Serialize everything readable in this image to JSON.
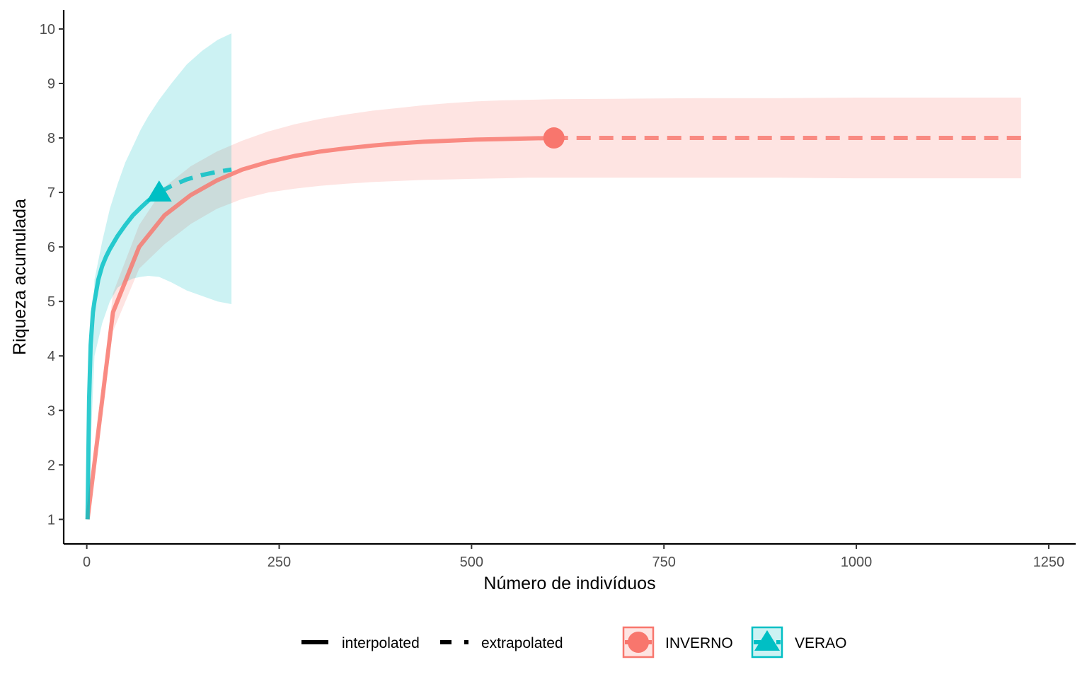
{
  "chart_data": {
    "type": "line",
    "xlabel": "Número de indivíduos",
    "ylabel": "Riqueza acumulada",
    "xlim": [
      -30,
      1285
    ],
    "ylim": [
      0.55,
      10.35
    ],
    "x_ticks": [
      0,
      250,
      500,
      750,
      1000,
      1250
    ],
    "x_tick_labels": [
      "0",
      "250",
      "500",
      "750",
      "1000",
      "1250"
    ],
    "y_ticks": [
      1,
      2,
      3,
      4,
      5,
      6,
      7,
      8,
      9,
      10
    ],
    "y_tick_labels": [
      "1",
      "2",
      "3",
      "4",
      "5",
      "6",
      "7",
      "8",
      "9",
      "10"
    ],
    "grid": false,
    "legend_position": "bottom",
    "linetype_legend": [
      {
        "label": "interpolated",
        "style": "solid"
      },
      {
        "label": "extrapolated",
        "style": "dashed"
      }
    ],
    "series": [
      {
        "name": "INVERNO",
        "color": "#F8766D",
        "marker": "circle",
        "observed": {
          "x": 607,
          "y": 8.0
        },
        "interpolated": {
          "x": [
            1,
            34,
            68,
            101,
            135,
            169,
            202,
            236,
            270,
            303,
            337,
            371,
            404,
            438,
            472,
            505,
            539,
            573,
            607
          ],
          "y": [
            1.0,
            4.8,
            6.0,
            6.58,
            6.95,
            7.22,
            7.42,
            7.56,
            7.67,
            7.75,
            7.81,
            7.86,
            7.9,
            7.93,
            7.95,
            7.97,
            7.98,
            7.99,
            8.0
          ]
        },
        "extrapolated": {
          "x": [
            607,
            700,
            800,
            900,
            1000,
            1100,
            1214
          ],
          "y": [
            8.0,
            8.0,
            8.0,
            8.0,
            8.0,
            8.0,
            8.0
          ]
        },
        "ci_lower": {
          "x": [
            1,
            34,
            68,
            101,
            135,
            169,
            202,
            236,
            270,
            303,
            337,
            371,
            404,
            438,
            472,
            505,
            539,
            573,
            607,
            700,
            800,
            900,
            1000,
            1100,
            1214
          ],
          "y": [
            1.0,
            4.45,
            5.6,
            6.05,
            6.42,
            6.7,
            6.88,
            7.0,
            7.07,
            7.12,
            7.16,
            7.19,
            7.21,
            7.23,
            7.24,
            7.25,
            7.26,
            7.27,
            7.27,
            7.27,
            7.27,
            7.27,
            7.26,
            7.26,
            7.26
          ]
        },
        "ci_upper": {
          "x": [
            1,
            34,
            68,
            101,
            135,
            169,
            202,
            236,
            270,
            303,
            337,
            371,
            404,
            438,
            472,
            505,
            539,
            573,
            607,
            700,
            800,
            900,
            1000,
            1100,
            1214
          ],
          "y": [
            1.0,
            5.15,
            6.4,
            7.1,
            7.48,
            7.75,
            7.95,
            8.12,
            8.25,
            8.35,
            8.43,
            8.5,
            8.55,
            8.6,
            8.64,
            8.67,
            8.69,
            8.7,
            8.71,
            8.72,
            8.73,
            8.73,
            8.74,
            8.74,
            8.74
          ]
        }
      },
      {
        "name": "VERAO",
        "color": "#00BFC4",
        "marker": "triangle",
        "observed": {
          "x": 94,
          "y": 7.0
        },
        "interpolated": {
          "x": [
            1,
            3,
            5,
            8,
            10,
            15,
            20,
            25,
            30,
            40,
            50,
            60,
            70,
            80,
            94
          ],
          "y": [
            1.0,
            3.2,
            4.2,
            4.8,
            5.0,
            5.4,
            5.65,
            5.82,
            5.96,
            6.2,
            6.4,
            6.58,
            6.72,
            6.85,
            7.0
          ]
        },
        "extrapolated": {
          "x": [
            94,
            110,
            130,
            150,
            170,
            188
          ],
          "y": [
            7.0,
            7.12,
            7.24,
            7.32,
            7.38,
            7.42
          ]
        },
        "ci_lower": {
          "x": [
            1,
            10,
            20,
            30,
            40,
            50,
            60,
            70,
            80,
            94,
            110,
            130,
            150,
            170,
            188
          ],
          "y": [
            1.0,
            4.0,
            4.6,
            5.0,
            5.25,
            5.35,
            5.42,
            5.45,
            5.47,
            5.45,
            5.35,
            5.2,
            5.1,
            5.0,
            4.95
          ]
        },
        "ci_upper": {
          "x": [
            1,
            10,
            20,
            30,
            40,
            50,
            60,
            70,
            80,
            94,
            110,
            130,
            150,
            170,
            188
          ],
          "y": [
            1.0,
            5.4,
            6.1,
            6.7,
            7.15,
            7.55,
            7.85,
            8.15,
            8.4,
            8.7,
            9.0,
            9.35,
            9.6,
            9.8,
            9.92
          ]
        }
      }
    ]
  }
}
